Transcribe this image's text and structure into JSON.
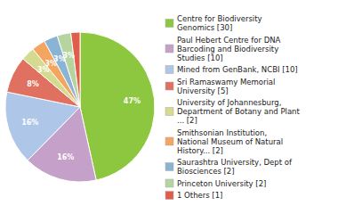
{
  "chart_data": {
    "type": "pie",
    "categories": [
      "Centre for Biodiversity\nGenomics [30]",
      "Paul Hebert Centre for DNA\nBarcoding and Biodiversity\nStudies [10]",
      "Mined from GenBank, NCBI [10]",
      "Sri Ramaswamy Memorial\nUniversity [5]",
      "University of Johannesburg,\nDepartment of Botany and Plant\n... [2]",
      "Smithsonian Institution,\nNational Museum of Natural\nHistory... [2]",
      "Saurashtra University, Dept of\nBiosciences [2]",
      "Princeton University [2]",
      "1 Others [1]"
    ],
    "values": [
      47,
      16,
      16,
      8,
      3,
      3,
      3,
      3,
      2
    ],
    "value_labels": [
      "47%",
      "16%",
      "16%",
      "8%",
      "3%",
      "3%",
      "3%",
      "3%",
      null
    ],
    "colors": [
      "#8dc63f",
      "#c5a0c8",
      "#aec6e8",
      "#e07060",
      "#d4db8e",
      "#f4a660",
      "#8ab4d4",
      "#b5d4a0",
      "#e05c4b"
    ],
    "data_labels": true,
    "legend": "right"
  }
}
